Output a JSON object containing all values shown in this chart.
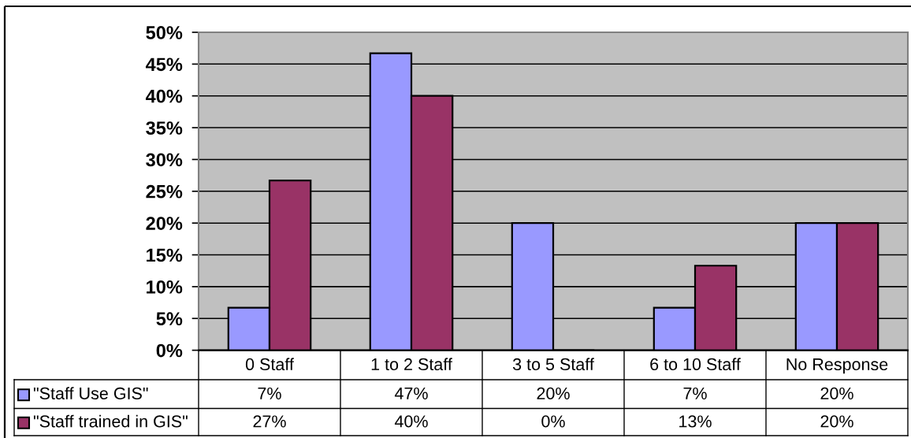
{
  "chart_data": {
    "type": "bar",
    "categories": [
      "0 Staff",
      "1 to 2 Staff",
      "3 to 5 Staff",
      "6 to 10 Staff",
      "No Response"
    ],
    "series": [
      {
        "name": "\"Staff Use GIS\"",
        "color": "#9999ff",
        "values": [
          6.7,
          46.7,
          20,
          6.7,
          20
        ],
        "value_labels": [
          "7%",
          "47%",
          "20%",
          "7%",
          "20%"
        ]
      },
      {
        "name": "\"Staff trained in GIS\"",
        "color": "#993366",
        "values": [
          26.7,
          40,
          0,
          13.3,
          20
        ],
        "value_labels": [
          "27%",
          "40%",
          "0%",
          "13%",
          "20%"
        ]
      }
    ],
    "ylim": [
      0,
      50
    ],
    "yticks": [
      {
        "value": 0,
        "label": "0%"
      },
      {
        "value": 5,
        "label": "5%"
      },
      {
        "value": 10,
        "label": "10%"
      },
      {
        "value": 15,
        "label": "15%"
      },
      {
        "value": 20,
        "label": "20%"
      },
      {
        "value": 25,
        "label": "25%"
      },
      {
        "value": 30,
        "label": "30%"
      },
      {
        "value": 35,
        "label": "35%"
      },
      {
        "value": 40,
        "label": "40%"
      },
      {
        "value": 45,
        "label": "45%"
      },
      {
        "value": 50,
        "label": "50%"
      }
    ],
    "grid": "y",
    "legend": "bottom left"
  }
}
